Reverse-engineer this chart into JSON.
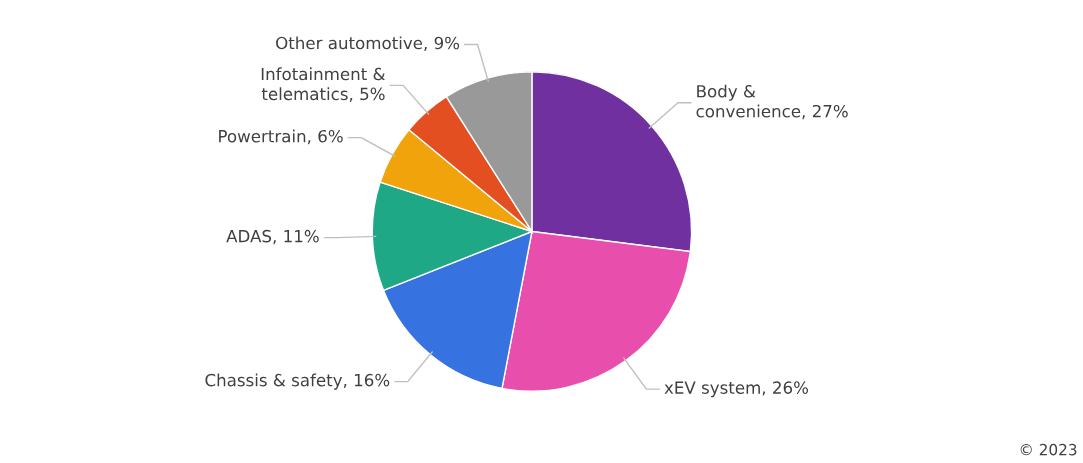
{
  "chart_data": {
    "type": "pie",
    "categories": [
      "Body &\nconvenience",
      "xEV system",
      "Chassis & safety",
      "ADAS",
      "Powertrain",
      "Infotainment &\ntelematics",
      "Other automotive"
    ],
    "values": [
      27,
      26,
      16,
      11,
      6,
      5,
      9
    ],
    "colors": [
      "#7030a0",
      "#e84fad",
      "#3672e0",
      "#1fa886",
      "#f0a30a",
      "#e44f22",
      "#999999"
    ],
    "value_labels": [
      "27%",
      "26%",
      "16%",
      "11%",
      "6%",
      "5%",
      "9%"
    ],
    "annotations": [
      "© 2023"
    ],
    "legend": false
  }
}
